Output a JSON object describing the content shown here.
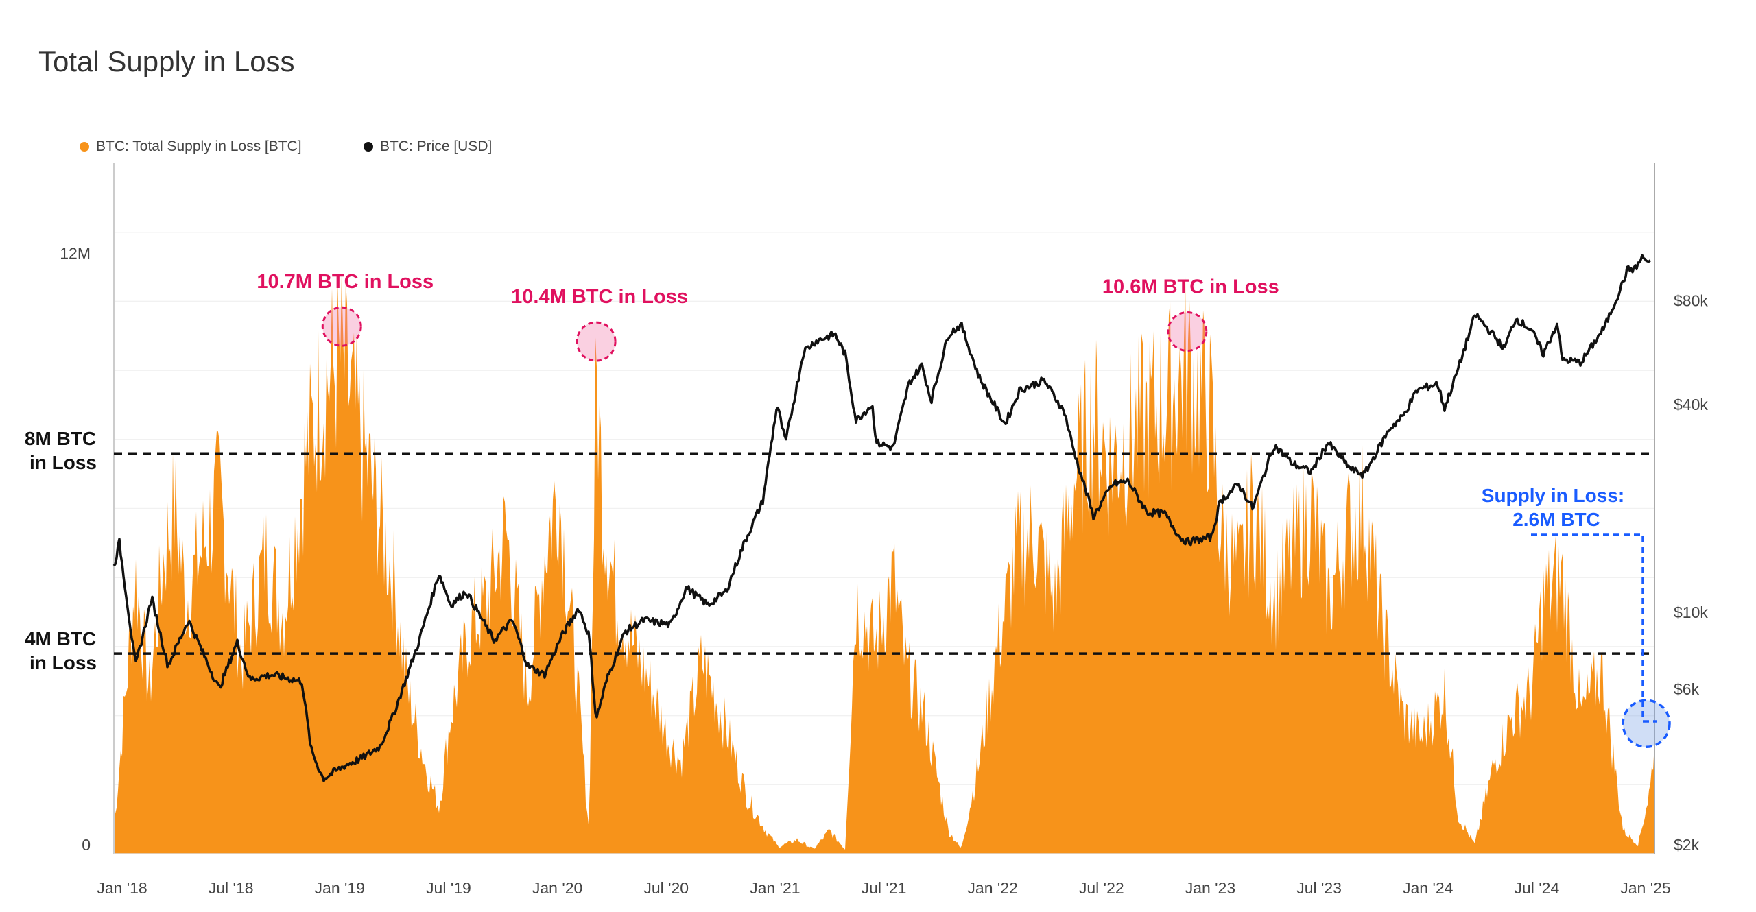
{
  "chart_data": {
    "type": "area",
    "title": "Total Supply in Loss",
    "legend": [
      {
        "label": "BTC: Total Supply in Loss [BTC]",
        "color": "#f7931a"
      },
      {
        "label": "BTC: Price [USD]",
        "color": "#111111"
      }
    ],
    "x_ticks": [
      "Jan '18",
      "Jul '18",
      "Jan '19",
      "Jul '19",
      "Jan '20",
      "Jul '20",
      "Jan '21",
      "Jul '21",
      "Jan '22",
      "Jul '22",
      "Jan '23",
      "Jul '23",
      "Jan '24",
      "Jul '24",
      "Jan '25"
    ],
    "x_range": [
      "2018-01-01",
      "2025-01-06"
    ],
    "left_axis": {
      "ticks": [
        "0",
        "12M"
      ],
      "tick_values": [
        0,
        12000000
      ],
      "ylim": [
        0,
        13800000
      ]
    },
    "right_axis": {
      "scale": "log",
      "ticks": [
        "$2k",
        "$6k",
        "$10k",
        "$40k",
        "$80k"
      ],
      "tick_values": [
        2000,
        6000,
        10000,
        40000,
        80000
      ],
      "ylim": [
        2000,
        200000
      ]
    },
    "series": [
      {
        "name": "BTC: Total Supply in Loss [BTC]",
        "axis": "left",
        "x": [
          "2018-01-01",
          "2018-02-06",
          "2018-03-01",
          "2018-03-25",
          "2018-04-12",
          "2018-05-01",
          "2018-06-25",
          "2018-08-01",
          "2018-09-10",
          "2018-10-10",
          "2018-11-15",
          "2018-12-15",
          "2019-01-15",
          "2019-02-15",
          "2019-03-15",
          "2019-04-10",
          "2019-05-05",
          "2019-06-05",
          "2019-06-26",
          "2019-07-15",
          "2019-08-15",
          "2019-09-15",
          "2019-10-15",
          "2019-11-20",
          "2019-12-18",
          "2020-01-10",
          "2020-02-15",
          "2020-03-01",
          "2020-03-13",
          "2020-03-25",
          "2020-04-15",
          "2020-05-15",
          "2020-06-15",
          "2020-07-10",
          "2020-08-01",
          "2020-09-05",
          "2020-09-25",
          "2020-10-20",
          "2020-11-20",
          "2020-12-20",
          "2021-01-10",
          "2021-02-10",
          "2021-03-10",
          "2021-04-05",
          "2021-05-01",
          "2021-05-19",
          "2021-06-20",
          "2021-07-20",
          "2021-08-10",
          "2021-09-10",
          "2021-10-20",
          "2021-11-10",
          "2021-12-10",
          "2022-01-10",
          "2022-02-10",
          "2022-03-10",
          "2022-04-15",
          "2022-05-15",
          "2022-06-18",
          "2022-07-15",
          "2022-08-15",
          "2022-09-15",
          "2022-10-15",
          "2022-11-21",
          "2022-12-30",
          "2023-01-15",
          "2023-02-15",
          "2023-03-10",
          "2023-04-15",
          "2023-05-15",
          "2023-06-15",
          "2023-07-15",
          "2023-08-15",
          "2023-09-11",
          "2023-10-10",
          "2023-11-15",
          "2023-12-15",
          "2024-01-23",
          "2024-02-15",
          "2024-03-13",
          "2024-04-15",
          "2024-05-15",
          "2024-06-15",
          "2024-07-05",
          "2024-08-05",
          "2024-09-06",
          "2024-10-10",
          "2024-11-15",
          "2024-12-10",
          "2024-12-31",
          "2025-01-06"
        ],
        "values": [
          500000,
          6000000,
          3500000,
          6500000,
          7500000,
          5500000,
          7800000,
          4200000,
          6500000,
          5200000,
          8500000,
          10200000,
          10700000,
          9000000,
          7500000,
          6000000,
          3500000,
          1800000,
          1000000,
          3000000,
          4800000,
          5500000,
          7000000,
          3500000,
          6500000,
          8000000,
          3000000,
          500000,
          10400000,
          7500000,
          5500000,
          4500000,
          3500000,
          2500000,
          2000000,
          4200000,
          3500000,
          2500000,
          1200000,
          500000,
          150000,
          300000,
          100000,
          500000,
          100000,
          5500000,
          4500000,
          6000000,
          4000000,
          3000000,
          500000,
          100000,
          2000000,
          4500000,
          6500000,
          7000000,
          5500000,
          8000000,
          9500000,
          8500000,
          9000000,
          9500000,
          9800000,
          10600000,
          9500000,
          7000000,
          6000000,
          7500000,
          5500000,
          6500000,
          7500000,
          5500000,
          7000000,
          7500000,
          5000000,
          3000000,
          2500000,
          3500000,
          800000,
          200000,
          2000000,
          3000000,
          3500000,
          5500000,
          6000000,
          3000000,
          4000000,
          500000,
          200000,
          1500000,
          2600000
        ]
      },
      {
        "name": "BTC: Price [USD]",
        "axis": "right",
        "x": [
          "2018-01-01",
          "2018-01-10",
          "2018-02-06",
          "2018-03-05",
          "2018-04-01",
          "2018-05-05",
          "2018-06-25",
          "2018-07-25",
          "2018-08-15",
          "2018-09-20",
          "2018-11-10",
          "2018-11-25",
          "2018-12-15",
          "2019-01-20",
          "2019-02-20",
          "2019-03-20",
          "2019-04-10",
          "2019-05-20",
          "2019-06-26",
          "2019-07-15",
          "2019-08-10",
          "2019-09-25",
          "2019-10-26",
          "2019-11-20",
          "2019-12-18",
          "2020-01-15",
          "2020-02-13",
          "2020-03-01",
          "2020-03-13",
          "2020-03-31",
          "2020-04-30",
          "2020-06-01",
          "2020-07-15",
          "2020-08-10",
          "2020-09-15",
          "2020-10-15",
          "2020-11-15",
          "2020-12-15",
          "2021-01-08",
          "2021-01-22",
          "2021-02-21",
          "2021-03-13",
          "2021-04-14",
          "2021-05-01",
          "2021-05-19",
          "2021-06-15",
          "2021-06-22",
          "2021-07-20",
          "2021-08-15",
          "2021-09-06",
          "2021-09-21",
          "2021-10-20",
          "2021-11-10",
          "2021-12-10",
          "2022-01-22",
          "2022-02-15",
          "2022-03-28",
          "2022-05-01",
          "2022-05-15",
          "2022-06-18",
          "2022-07-20",
          "2022-08-15",
          "2022-09-15",
          "2022-10-15",
          "2022-11-09",
          "2022-11-21",
          "2022-12-31",
          "2023-01-15",
          "2023-02-15",
          "2023-03-10",
          "2023-04-14",
          "2023-05-15",
          "2023-06-15",
          "2023-07-13",
          "2023-08-20",
          "2023-09-11",
          "2023-10-23",
          "2023-11-15",
          "2023-12-08",
          "2024-01-11",
          "2024-01-23",
          "2024-02-15",
          "2024-03-14",
          "2024-04-15",
          "2024-05-01",
          "2024-05-20",
          "2024-06-15",
          "2024-07-05",
          "2024-07-29",
          "2024-08-05",
          "2024-09-06",
          "2024-10-15",
          "2024-11-12",
          "2024-11-22",
          "2024-12-05",
          "2024-12-17",
          "2025-01-06"
        ],
        "values": [
          13500,
          16000,
          7000,
          11000,
          7000,
          9500,
          6000,
          8200,
          6400,
          6600,
          6300,
          4000,
          3300,
          3600,
          3800,
          4100,
          5000,
          7900,
          13000,
          10500,
          11500,
          8300,
          9500,
          7000,
          6600,
          8500,
          10300,
          8600,
          4900,
          6400,
          8800,
          9500,
          9200,
          11800,
          10500,
          11500,
          16000,
          21000,
          40000,
          31000,
          57000,
          61000,
          64000,
          56000,
          36000,
          40000,
          31000,
          30000,
          46000,
          52000,
          41000,
          64000,
          68000,
          48000,
          35000,
          44000,
          47000,
          38000,
          30000,
          19000,
          23500,
          24000,
          19500,
          19300,
          16500,
          16000,
          16500,
          21000,
          23500,
          20000,
          30500,
          27000,
          25500,
          31000,
          26000,
          25000,
          34000,
          37000,
          44000,
          46000,
          39000,
          51000,
          73000,
          63000,
          58000,
          71000,
          66000,
          56000,
          69000,
          54000,
          53000,
          67000,
          88000,
          98500,
          99000,
          107000,
          100000
        ]
      }
    ],
    "reference_lines": [
      {
        "label": "8M BTC",
        "sublabel": "in Loss",
        "value": 8000000
      },
      {
        "label": "4M BTC",
        "sublabel": "in Loss",
        "value": 4000000
      }
    ],
    "annotations": [
      {
        "text": "10.7M BTC in Loss",
        "date": "2019-01-15",
        "value": 10700000
      },
      {
        "text": "10.4M BTC in Loss",
        "date": "2020-03-13",
        "value": 10400000
      },
      {
        "text": "10.6M BTC in Loss",
        "date": "2022-11-21",
        "value": 10600000
      }
    ],
    "callout": {
      "line1": "Supply in Loss:",
      "line2": "2.6M BTC",
      "date": "2025-01-06",
      "value": 2600000
    }
  }
}
